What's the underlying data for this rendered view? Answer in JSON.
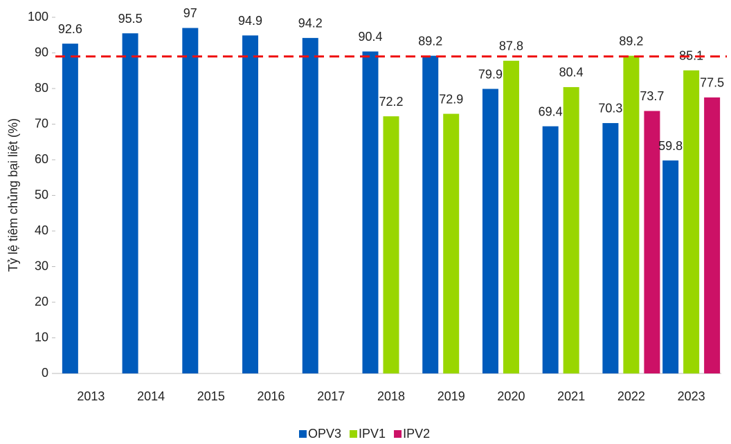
{
  "chart_data": {
    "type": "bar",
    "y_label": "Tỷ lệ tiêm chủng bại liệt (%)",
    "categories": [
      "2013",
      "2014",
      "2015",
      "2016",
      "2017",
      "2018",
      "2019",
      "2020",
      "2021",
      "2022",
      "2023"
    ],
    "series": [
      {
        "name": "OPV3",
        "color": "#005bbb",
        "values": [
          92.6,
          95.5,
          97,
          94.9,
          94.2,
          90.4,
          89.2,
          79.9,
          69.4,
          70.3,
          59.8
        ]
      },
      {
        "name": "IPV1",
        "color": "#99d600",
        "values": [
          null,
          null,
          null,
          null,
          null,
          72.2,
          72.9,
          87.8,
          80.4,
          89.2,
          85.1
        ]
      },
      {
        "name": "IPV2",
        "color": "#cc1166",
        "values": [
          null,
          null,
          null,
          null,
          null,
          null,
          null,
          null,
          null,
          73.7,
          77.5
        ]
      }
    ],
    "reference_line": {
      "value": 89,
      "color": "#ee1111"
    },
    "ylim": [
      0,
      100
    ],
    "yticks": [
      0,
      10,
      20,
      30,
      40,
      50,
      60,
      70,
      80,
      90,
      100
    ],
    "grid": false,
    "legend": "bottom"
  }
}
